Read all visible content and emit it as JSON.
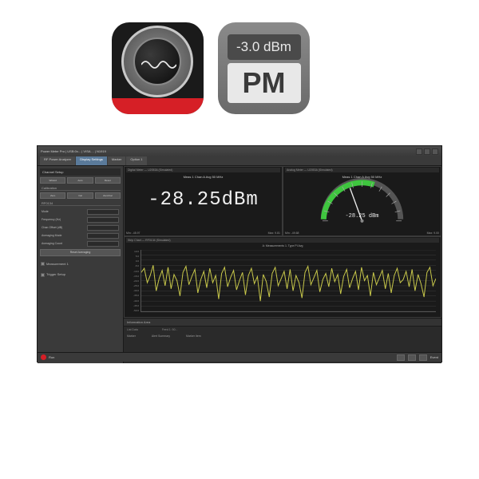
{
  "top_icons": {
    "pm": {
      "readout": "-3.0 dBm",
      "label": "PM",
      "bg_top": "#8a8a8a",
      "bg_bot": "#6a6a6a",
      "readout_bg": "#4a4a4a",
      "label_bg": "#e8e8e8"
    },
    "scope": {
      "accent": "#d61f26",
      "wave_color": "#e8e8e8"
    }
  },
  "window": {
    "title": "Power Meter Pro | USB:0x... | VISA ... | N1919",
    "menubar": [
      "RF Power Analyzer",
      "Display Settings",
      "Marker",
      "Option 1"
    ],
    "menubar_active": 1
  },
  "sidebar": {
    "header": "Channel Setup",
    "btns": [
      "Wizard",
      "Auto",
      "Reset"
    ],
    "sub1": "Calibration",
    "cal_btns": [
      "Zero",
      "Cal",
      "Zero/Cal"
    ],
    "sub2": "RF0134",
    "rows": [
      {
        "label": "Mode",
        "val": "Normal"
      },
      {
        "label": "Frequency (Hz)",
        "val": "50.0 M"
      },
      {
        "label": "Chan Offset (dB)",
        "val": "0.00"
      },
      {
        "label": "Averaging Mode",
        "val": "Auto"
      },
      {
        "label": "Averaging Count",
        "val": ""
      }
    ],
    "reset_btn": "Reset Averaging",
    "checks": [
      "Measurement 1",
      "Trigger Setup"
    ]
  },
  "digital_panel": {
    "title_left": "Digital Meter — U2053A (Simulated)",
    "sub": "Meas 1 Chan A Avg  50 MHz",
    "value": "-28.25dBm",
    "min": "Min: -45.97",
    "max": "Max: 9.81",
    "font": "Courier New",
    "fontsize": 24,
    "color": "#f0f0f0"
  },
  "analog_panel": {
    "title_left": "Analog Meter — U2053A (Simulated)",
    "sub": "Meas 1 Chan A Avg  50 MHz",
    "value": "-28.25 dBm",
    "min": "Min: -49.68",
    "max": "Max: 9.00",
    "scale_start": -50,
    "scale_end": 10,
    "ticks": 7,
    "arc_color_active": "#3fc63f",
    "arc_color_bg": "#555555",
    "needle_color": "#e8e8e8",
    "needle_value": -28.25
  },
  "strip": {
    "title": "Strip Chart — RF0134 (Simulated)",
    "sub": "A: Measurements 1. Type PI Avg",
    "ylim": [
      -50,
      10
    ],
    "ytick_step": 5,
    "y_labels": [
      "10.0",
      "5.0",
      "0.0",
      "-5.0",
      "-10.0",
      "-15.0",
      "-20.0",
      "-25.0",
      "-30.0",
      "-35.0",
      "-40.0",
      "-45.0",
      "-50.0"
    ],
    "color": "#c8c84a",
    "grid_color": "#3a3a3a",
    "bg": "#1a1a1a",
    "points": [
      -12,
      -8,
      -22,
      -15,
      -5,
      -30,
      -18,
      -10,
      -25,
      -7,
      -28,
      -14,
      -20,
      -35,
      -12,
      -6,
      -24,
      -16,
      -9,
      -32,
      -19,
      -11,
      -27,
      -8,
      -22,
      -15,
      -38,
      -13,
      -7,
      -26,
      -17,
      -10,
      -29,
      -20,
      -12,
      -34,
      -15,
      -8,
      -23,
      -16,
      -40,
      -14,
      -21,
      -36,
      -13,
      -7,
      -25,
      -18,
      -11,
      -28,
      -9,
      -30,
      -15,
      -22,
      -37,
      -12,
      -6,
      -24,
      -17,
      -10,
      -31,
      -19,
      -13,
      -26,
      -8,
      -21,
      -14,
      -33,
      -16,
      -9,
      -27,
      -18,
      -11,
      -29,
      -7,
      -20,
      -15,
      -35,
      -12,
      -24,
      -17,
      -10,
      -28,
      -13,
      -32,
      -15,
      -8,
      -22,
      -19,
      -11,
      -26,
      -9,
      -30,
      -14,
      -23,
      -36,
      -12,
      -7,
      -25,
      -18
    ]
  },
  "info": {
    "header": "Information Area",
    "cols": [
      "List Data",
      "Feed 1: 50..."
    ],
    "row": [
      "Marker",
      "Alert Summary",
      "Marker Item"
    ]
  },
  "status": {
    "left": "Run",
    "right": "Event",
    "dot": "#d61f26"
  }
}
